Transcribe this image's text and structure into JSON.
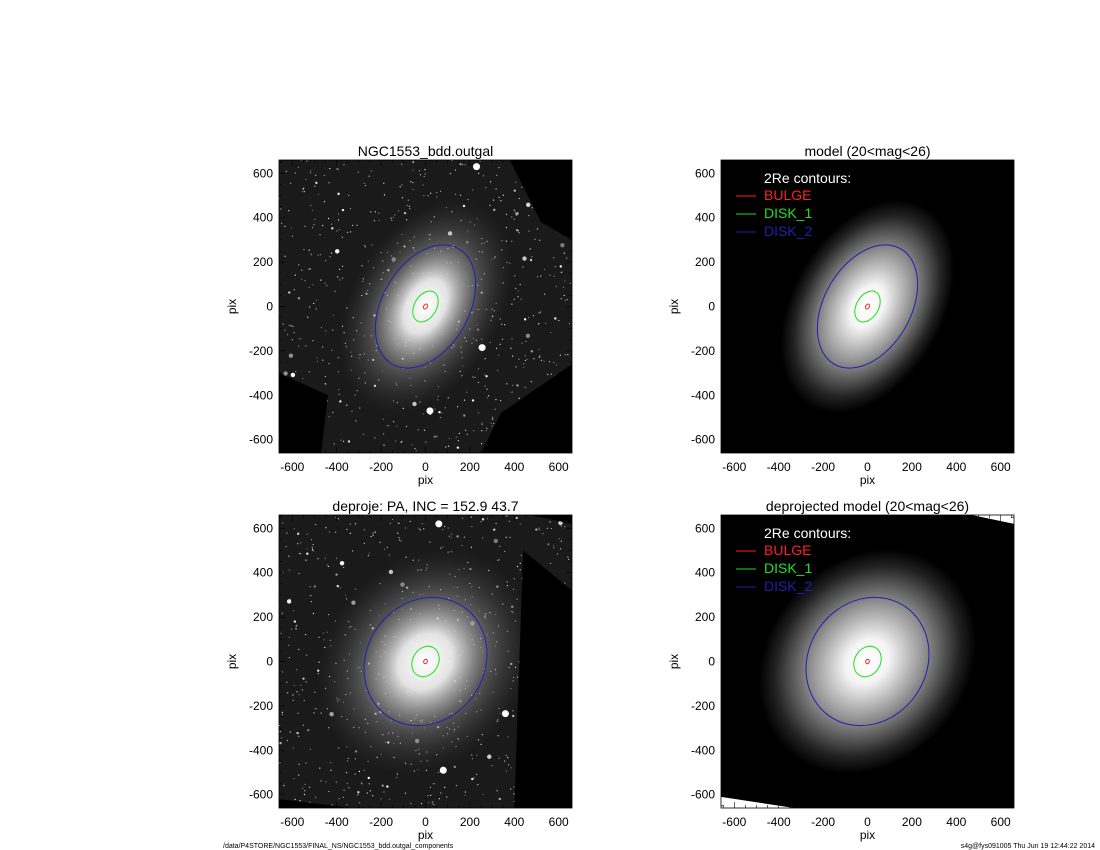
{
  "footer": {
    "left": "/data/P4STORE/NGC1553/FINAL_NS/NGC1553_bdd.outgal_components",
    "right": "s4g@fys091005  Thu Jun 19 12:44:22 2014"
  },
  "colors": {
    "bulge": "#ff2020",
    "disk_1": "#20e020",
    "disk_2": "#2020b0",
    "background": "#000000"
  },
  "chart_data": [
    {
      "type": "image",
      "title": "NGC1553_bdd.outgal",
      "xlabel": "pix",
      "ylabel": "pix",
      "xlim": [
        -660,
        660
      ],
      "ylim": [
        -660,
        660
      ],
      "xticks": [
        -600,
        -400,
        -200,
        0,
        200,
        400,
        600
      ],
      "yticks": [
        -600,
        -400,
        -200,
        0,
        200,
        400,
        600
      ],
      "image": "galaxy-with-stars",
      "contours": [
        {
          "component": "BULGE",
          "a": 12,
          "b": 8,
          "pa_deg": 33
        },
        {
          "component": "DISK_1",
          "a": 75,
          "b": 50,
          "pa_deg": 30
        },
        {
          "component": "DISK_2",
          "a": 300,
          "b": 195,
          "pa_deg": 30
        }
      ]
    },
    {
      "type": "image",
      "title": "model (20<mag<26)",
      "xlabel": "pix",
      "ylabel": "pix",
      "xlim": [
        -660,
        660
      ],
      "ylim": [
        -660,
        660
      ],
      "xticks": [
        -600,
        -400,
        -200,
        0,
        200,
        400,
        600
      ],
      "yticks": [
        -600,
        -400,
        -200,
        0,
        200,
        400,
        600
      ],
      "image": "model",
      "legend": {
        "title": "2Re contours:",
        "entries": [
          "BULGE",
          "DISK_1",
          "DISK_2"
        ],
        "position": "top-left"
      },
      "contours": [
        {
          "component": "BULGE",
          "a": 12,
          "b": 8,
          "pa_deg": 33
        },
        {
          "component": "DISK_1",
          "a": 75,
          "b": 50,
          "pa_deg": 30
        },
        {
          "component": "DISK_2",
          "a": 300,
          "b": 195,
          "pa_deg": 30
        }
      ]
    },
    {
      "type": "image",
      "title": "deproje: PA, INC = 152.9    43.7",
      "xlabel": "pix",
      "ylabel": "pix",
      "xlim": [
        -660,
        660
      ],
      "ylim": [
        -660,
        660
      ],
      "xticks": [
        -600,
        -400,
        -200,
        0,
        200,
        400,
        600
      ],
      "yticks": [
        -600,
        -400,
        -200,
        0,
        200,
        400,
        600
      ],
      "image": "galaxy-with-stars-deprojected",
      "contours": [
        {
          "component": "BULGE",
          "a": 10,
          "b": 8,
          "pa_deg": 30
        },
        {
          "component": "DISK_1",
          "a": 72,
          "b": 58,
          "pa_deg": 30
        },
        {
          "component": "DISK_2",
          "a": 300,
          "b": 265,
          "pa_deg": 35
        }
      ]
    },
    {
      "type": "image",
      "title": "deprojected model (20<mag<26)",
      "xlabel": "pix",
      "ylabel": "pix",
      "xlim": [
        -660,
        660
      ],
      "ylim": [
        -660,
        660
      ],
      "xticks": [
        -600,
        -400,
        -200,
        0,
        200,
        400,
        600
      ],
      "yticks": [
        -600,
        -400,
        -200,
        0,
        200,
        400,
        600
      ],
      "image": "model-deprojected",
      "legend": {
        "title": "2Re contours:",
        "entries": [
          "BULGE",
          "DISK_1",
          "DISK_2"
        ],
        "position": "top-left"
      },
      "contours": [
        {
          "component": "BULGE",
          "a": 10,
          "b": 8,
          "pa_deg": 30
        },
        {
          "component": "DISK_1",
          "a": 72,
          "b": 58,
          "pa_deg": 30
        },
        {
          "component": "DISK_2",
          "a": 300,
          "b": 265,
          "pa_deg": 35
        }
      ]
    }
  ]
}
